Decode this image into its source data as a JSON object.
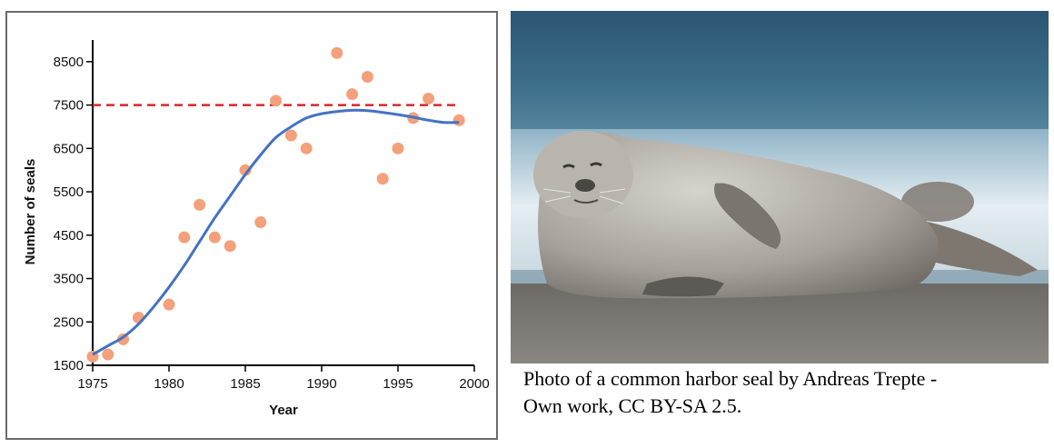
{
  "chart_data": {
    "type": "scatter",
    "xlabel": "Year",
    "ylabel": "Number of seals",
    "xlim": [
      1975,
      2000
    ],
    "ylim": [
      1500,
      9000
    ],
    "xticks": [
      "1975",
      "1980",
      "1985",
      "1990",
      "1995",
      "2000"
    ],
    "yticks": [
      "1500",
      "2500",
      "3500",
      "4500",
      "5500",
      "6500",
      "7500",
      "8500"
    ],
    "grid": false,
    "points": {
      "color": "#f4a07a",
      "x": [
        1975,
        1976,
        1977,
        1978,
        1980,
        1981,
        1982,
        1983,
        1984,
        1985,
        1986,
        1987,
        1988,
        1989,
        1991,
        1992,
        1993,
        1994,
        1995,
        1996,
        1997,
        1999
      ],
      "y": [
        1700,
        1750,
        2100,
        2600,
        2900,
        4450,
        5200,
        4450,
        4250,
        6000,
        4800,
        7600,
        6800,
        6500,
        8700,
        7750,
        8150,
        5800,
        6500,
        7200,
        7650,
        7150
      ]
    },
    "fit_curve": {
      "color": "#4472c4",
      "x": [
        1975,
        1976,
        1977,
        1978,
        1979,
        1980,
        1981,
        1982,
        1983,
        1984,
        1985,
        1986,
        1987,
        1988,
        1989,
        1990,
        1991,
        1992,
        1993,
        1994,
        1995,
        1996,
        1997,
        1998,
        1999
      ],
      "y": [
        1750,
        1950,
        2150,
        2450,
        2850,
        3300,
        3800,
        4350,
        4900,
        5400,
        5900,
        6350,
        6750,
        7000,
        7200,
        7300,
        7350,
        7380,
        7370,
        7330,
        7280,
        7220,
        7150,
        7100,
        7100
      ]
    },
    "carrying_capacity": {
      "color": "#d9262a",
      "y": 7500,
      "x_range": [
        1975,
        1999
      ]
    }
  },
  "photo": {
    "caption_line1": "Photo of a common harbor seal by Andreas Trepte -",
    "caption_line2": "Own work, CC BY-SA 2.5."
  }
}
